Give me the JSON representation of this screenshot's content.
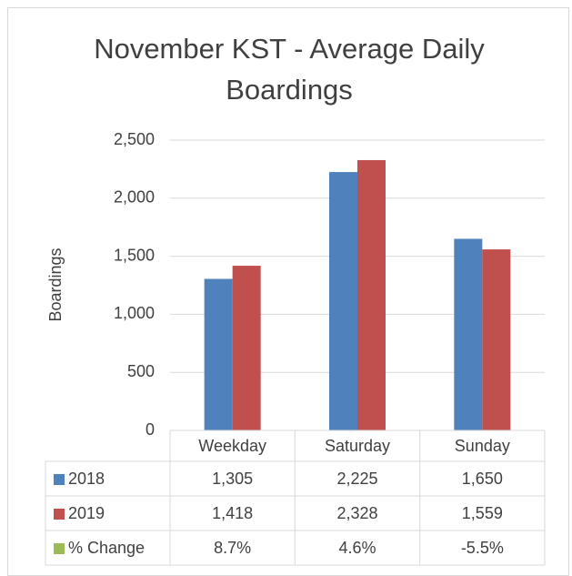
{
  "chart_data": {
    "type": "bar",
    "title": "November KST - Average Daily Boardings",
    "y_label": "Boardings",
    "categories": [
      "Weekday",
      "Saturday",
      "Sunday"
    ],
    "series": [
      {
        "name": "2018",
        "color": "#4f81bd",
        "values": [
          1305,
          2225,
          1650
        ],
        "value_labels": [
          "1,305",
          "2,225",
          "1,650"
        ]
      },
      {
        "name": "2019",
        "color": "#c0504d",
        "values": [
          1418,
          2328,
          1559
        ],
        "value_labels": [
          "1,418",
          "2,328",
          "1,559"
        ]
      },
      {
        "name": "% Change",
        "color": "#9bbb59",
        "axis": "y2",
        "values": [
          8.7,
          4.6,
          -5.5
        ],
        "value_labels": [
          "8.7%",
          "4.6%",
          "-5.5%"
        ]
      }
    ],
    "ylim": [
      0,
      2500
    ],
    "yticks": [
      0,
      {
        "value": 500,
        "label": "500"
      },
      {
        "value": 1000,
        "label": "1,000"
      },
      {
        "value": 1500,
        "label": "1,500"
      },
      {
        "value": 2000,
        "label": "2,000"
      },
      {
        "value": 2500,
        "label": "2,500"
      }
    ],
    "grid": true
  }
}
